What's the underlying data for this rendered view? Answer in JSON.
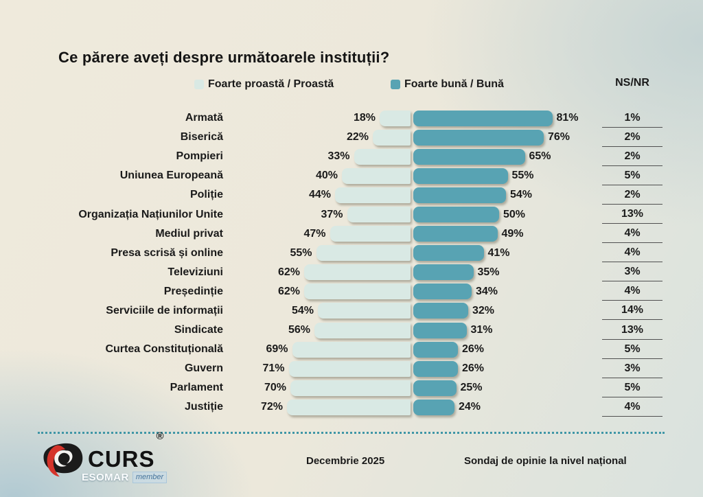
{
  "title": "Ce părere aveți despre următoarele instituții?",
  "legend": {
    "bad": {
      "label": "Foarte proastă / Proastă",
      "color": "#d9e9e4"
    },
    "good": {
      "label": "Foarte bună / Bună",
      "color": "#58a3b3"
    }
  },
  "ns_nr": {
    "header": "NS/NR"
  },
  "chart_data": {
    "type": "bar",
    "variant": "horizontal-diverging",
    "title": "Ce părere aveți despre următoarele instituții?",
    "unit": "%",
    "xlim": [
      0,
      100
    ],
    "legend_position": "top",
    "categories": [
      "Armată",
      "Biserică",
      "Pompieri",
      "Uniunea Europeană",
      "Poliție",
      "Organizația Națiunilor Unite",
      "Mediul privat",
      "Presa scrisă  și online",
      "Televiziuni",
      "Președinție",
      "Serviciile de informații",
      "Sindicate",
      "Curtea Constituțională",
      "Guvern",
      "Parlament",
      "Justiție"
    ],
    "series": [
      {
        "name": "Foarte proastă / Proastă",
        "color": "#d9e9e4",
        "values": [
          18,
          22,
          33,
          40,
          44,
          37,
          47,
          55,
          62,
          62,
          54,
          56,
          69,
          71,
          70,
          72
        ]
      },
      {
        "name": "Foarte bună / Bună",
        "color": "#58a3b3",
        "values": [
          81,
          76,
          65,
          55,
          54,
          50,
          49,
          41,
          35,
          34,
          32,
          31,
          26,
          26,
          25,
          24
        ]
      },
      {
        "name": "NS/NR",
        "values": [
          1,
          2,
          2,
          5,
          2,
          13,
          4,
          4,
          3,
          4,
          14,
          13,
          5,
          3,
          5,
          4
        ]
      }
    ]
  },
  "footer": {
    "brand": "CURS",
    "brand_reg": "®",
    "esomar": "ESOMAR",
    "esomar_member": "member",
    "date": "Decembrie 2025",
    "note": "Sondaj de opinie la nivel național"
  }
}
